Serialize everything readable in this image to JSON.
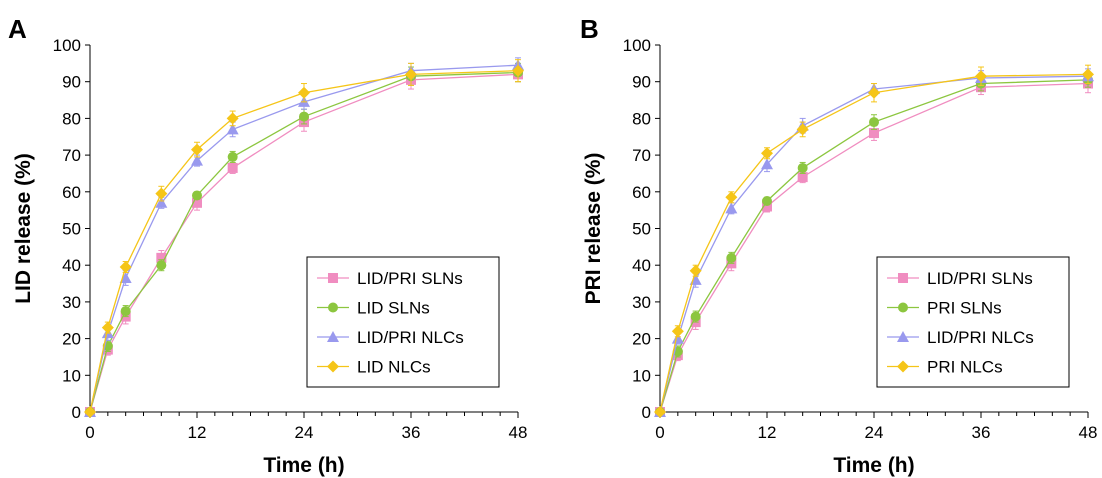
{
  "chart_data": [
    {
      "type": "line",
      "panel_label": "A",
      "xlabel": "Time (h)",
      "ylabel": "LID release (%)",
      "xlim": [
        0,
        48
      ],
      "ylim": [
        0,
        100
      ],
      "xticks": [
        0,
        12,
        24,
        36,
        48
      ],
      "yticks": [
        0,
        10,
        20,
        30,
        40,
        50,
        60,
        70,
        80,
        90,
        100
      ],
      "grid": false,
      "legend_position": "bottom-right",
      "x": [
        0,
        2,
        4,
        8,
        12,
        16,
        24,
        36,
        48
      ],
      "series": [
        {
          "name": "LID/PRI SLNs",
          "color": "#f08dc0",
          "marker": "square",
          "values": [
            0,
            17,
            26,
            42,
            57,
            66.5,
            79,
            90.5,
            92
          ],
          "errors": [
            0,
            1.5,
            2,
            2,
            2,
            1.5,
            2.5,
            2.5,
            2
          ]
        },
        {
          "name": "LID SLNs",
          "color": "#8cc63f",
          "marker": "circle",
          "values": [
            0,
            18,
            27.5,
            40,
            59,
            69.5,
            80.5,
            91.5,
            92.5
          ],
          "errors": [
            0,
            1.5,
            1.5,
            1.5,
            1,
            1.5,
            2,
            2.5,
            2.5
          ]
        },
        {
          "name": "LID/PRI NLCs",
          "color": "#9999ee",
          "marker": "triangle",
          "values": [
            0,
            21.5,
            36.5,
            57,
            68.5,
            77,
            84.5,
            93,
            94.5
          ],
          "errors": [
            0,
            2,
            2,
            1.5,
            1.5,
            2,
            2,
            2,
            2
          ]
        },
        {
          "name": "LID NLCs",
          "color": "#f5c518",
          "marker": "diamond",
          "values": [
            0,
            23,
            39.5,
            59.5,
            71.5,
            80,
            87,
            92,
            93
          ],
          "errors": [
            0,
            1.5,
            1.5,
            2,
            2,
            2,
            2.5,
            3,
            3
          ]
        }
      ]
    },
    {
      "type": "line",
      "panel_label": "B",
      "xlabel": "Time (h)",
      "ylabel": "PRI release (%)",
      "xlim": [
        0,
        48
      ],
      "ylim": [
        0,
        100
      ],
      "xticks": [
        0,
        12,
        24,
        36,
        48
      ],
      "yticks": [
        0,
        10,
        20,
        30,
        40,
        50,
        60,
        70,
        80,
        90,
        100
      ],
      "grid": false,
      "legend_position": "bottom-right",
      "x": [
        0,
        2,
        4,
        8,
        12,
        16,
        24,
        36,
        48
      ],
      "series": [
        {
          "name": "LID/PRI SLNs",
          "color": "#f08dc0",
          "marker": "square",
          "values": [
            0,
            15.5,
            24.5,
            40.5,
            56,
            64,
            76,
            88.5,
            89.5
          ],
          "errors": [
            0,
            1.5,
            2,
            2,
            1.5,
            1.5,
            2,
            2,
            2.5
          ]
        },
        {
          "name": "PRI SLNs",
          "color": "#8cc63f",
          "marker": "circle",
          "values": [
            0,
            16.5,
            26,
            42,
            57.5,
            66.5,
            79,
            89.5,
            90.5
          ],
          "errors": [
            0,
            1.5,
            1.5,
            1.5,
            1,
            1.5,
            2,
            2,
            2
          ]
        },
        {
          "name": "LID/PRI NLCs",
          "color": "#9999ee",
          "marker": "triangle",
          "values": [
            0,
            20,
            36,
            55.5,
            67.5,
            78,
            88,
            91,
            91.5
          ],
          "errors": [
            0,
            1.5,
            2,
            1.5,
            2,
            2,
            1.5,
            2,
            2
          ]
        },
        {
          "name": "PRI NLCs",
          "color": "#f5c518",
          "marker": "diamond",
          "values": [
            0,
            22,
            38.5,
            58.5,
            70.5,
            77,
            87,
            91.5,
            92
          ],
          "errors": [
            0,
            1.5,
            1.5,
            1.5,
            1.5,
            2,
            2.5,
            2.5,
            2.5
          ]
        }
      ]
    }
  ]
}
